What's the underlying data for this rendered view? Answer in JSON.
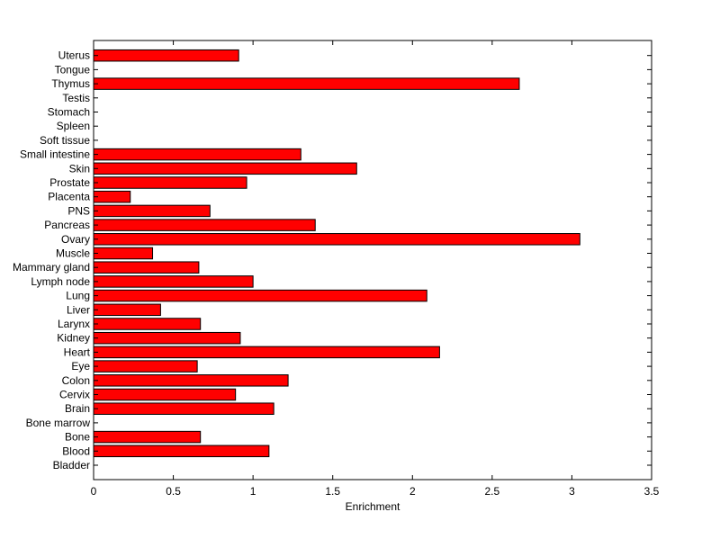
{
  "chart_data": {
    "type": "bar",
    "orientation": "horizontal",
    "title": "",
    "xlabel": "Enrichment",
    "ylabel": "",
    "xlim": [
      0,
      3.5
    ],
    "xticks": [
      0,
      0.5,
      1,
      1.5,
      2,
      2.5,
      3,
      3.5
    ],
    "xtick_labels": [
      "0",
      "0.5",
      "1",
      "1.5",
      "2",
      "2.5",
      "3",
      "3.5"
    ],
    "grid": false,
    "legend": "none",
    "bar_color": "#ff0000",
    "categories": [
      "Bladder",
      "Blood",
      "Bone",
      "Bone marrow",
      "Brain",
      "Cervix",
      "Colon",
      "Eye",
      "Heart",
      "Kidney",
      "Larynx",
      "Liver",
      "Lung",
      "Lymph node",
      "Mammary gland",
      "Muscle",
      "Ovary",
      "Pancreas",
      "PNS",
      "Placenta",
      "Prostate",
      "Skin",
      "Small intestine",
      "Soft tissue",
      "Spleen",
      "Stomach",
      "Testis",
      "Thymus",
      "Tongue",
      "Uterus"
    ],
    "values": [
      0,
      1.1,
      0.67,
      0,
      1.13,
      0.89,
      1.22,
      0.65,
      2.17,
      0.92,
      0.67,
      0.42,
      2.09,
      1.0,
      0.66,
      0.37,
      3.05,
      1.39,
      0.73,
      0.23,
      0.96,
      1.65,
      1.3,
      0,
      0,
      0,
      0,
      2.67,
      0,
      0.91
    ]
  }
}
